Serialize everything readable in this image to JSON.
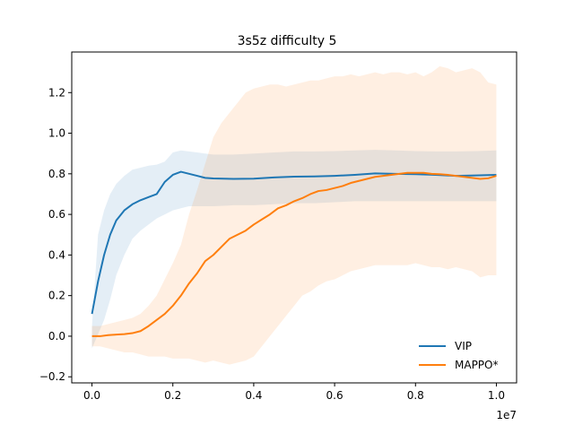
{
  "chart_data": {
    "type": "line",
    "title": "3s5z difficulty 5",
    "xlabel": "",
    "ylabel": "",
    "x_offset_label": "1e7",
    "xlim": [
      -0.05,
      1.05
    ],
    "ylim": [
      -0.23,
      1.4
    ],
    "grid": false,
    "legend_position": "lower-right",
    "x_ticks": [
      0.0,
      0.2,
      0.4,
      0.6,
      0.8,
      1.0
    ],
    "x_tick_labels": [
      "0.0",
      "0.2",
      "0.4",
      "0.6",
      "0.8",
      "1.0"
    ],
    "y_ticks": [
      -0.2,
      0.0,
      0.2,
      0.4,
      0.6,
      0.8,
      1.0,
      1.2
    ],
    "y_tick_labels": [
      "−0.2",
      "0.0",
      "0.2",
      "0.4",
      "0.6",
      "0.8",
      "1.0",
      "1.2"
    ],
    "series": [
      {
        "name": "VIP",
        "color": "#1f77b4",
        "x": [
          0.0,
          0.015,
          0.03,
          0.045,
          0.06,
          0.08,
          0.1,
          0.12,
          0.14,
          0.16,
          0.18,
          0.2,
          0.22,
          0.24,
          0.26,
          0.28,
          0.3,
          0.35,
          0.4,
          0.45,
          0.5,
          0.55,
          0.6,
          0.65,
          0.7,
          0.75,
          0.8,
          0.85,
          0.9,
          0.95,
          1.0
        ],
        "y": [
          0.11,
          0.27,
          0.4,
          0.5,
          0.57,
          0.62,
          0.65,
          0.67,
          0.685,
          0.7,
          0.76,
          0.795,
          0.81,
          0.8,
          0.79,
          0.78,
          0.777,
          0.775,
          0.776,
          0.782,
          0.786,
          0.787,
          0.79,
          0.795,
          0.802,
          0.8,
          0.798,
          0.795,
          0.79,
          0.792,
          0.795
        ],
        "y_low": [
          -0.06,
          0.01,
          0.08,
          0.18,
          0.3,
          0.4,
          0.48,
          0.52,
          0.55,
          0.58,
          0.6,
          0.62,
          0.63,
          0.64,
          0.64,
          0.64,
          0.64,
          0.645,
          0.645,
          0.65,
          0.655,
          0.655,
          0.66,
          0.665,
          0.665,
          0.665,
          0.665,
          0.665,
          0.665,
          0.665,
          0.665
        ],
        "y_high": [
          0.05,
          0.5,
          0.62,
          0.7,
          0.75,
          0.79,
          0.82,
          0.83,
          0.84,
          0.845,
          0.86,
          0.905,
          0.915,
          0.91,
          0.905,
          0.9,
          0.895,
          0.895,
          0.9,
          0.905,
          0.91,
          0.91,
          0.912,
          0.915,
          0.918,
          0.915,
          0.912,
          0.91,
          0.91,
          0.912,
          0.915
        ]
      },
      {
        "name": "MAPPO*",
        "color": "#ff7f0e",
        "x": [
          0.0,
          0.02,
          0.04,
          0.06,
          0.08,
          0.1,
          0.12,
          0.14,
          0.16,
          0.18,
          0.2,
          0.22,
          0.24,
          0.26,
          0.28,
          0.3,
          0.32,
          0.34,
          0.36,
          0.38,
          0.4,
          0.42,
          0.44,
          0.46,
          0.48,
          0.5,
          0.52,
          0.54,
          0.56,
          0.58,
          0.6,
          0.62,
          0.64,
          0.66,
          0.68,
          0.7,
          0.72,
          0.74,
          0.76,
          0.78,
          0.8,
          0.82,
          0.84,
          0.86,
          0.88,
          0.9,
          0.92,
          0.94,
          0.96,
          0.98,
          1.0
        ],
        "y": [
          0.0,
          0.0,
          0.005,
          0.008,
          0.01,
          0.015,
          0.025,
          0.05,
          0.08,
          0.11,
          0.15,
          0.2,
          0.26,
          0.31,
          0.37,
          0.4,
          0.44,
          0.48,
          0.5,
          0.52,
          0.55,
          0.575,
          0.6,
          0.63,
          0.645,
          0.665,
          0.68,
          0.7,
          0.715,
          0.72,
          0.73,
          0.74,
          0.755,
          0.765,
          0.775,
          0.785,
          0.79,
          0.795,
          0.8,
          0.805,
          0.805,
          0.805,
          0.8,
          0.798,
          0.795,
          0.79,
          0.785,
          0.78,
          0.775,
          0.778,
          0.79
        ],
        "y_low": [
          -0.05,
          -0.05,
          -0.06,
          -0.07,
          -0.08,
          -0.08,
          -0.09,
          -0.1,
          -0.1,
          -0.1,
          -0.11,
          -0.11,
          -0.11,
          -0.12,
          -0.13,
          -0.12,
          -0.13,
          -0.14,
          -0.13,
          -0.12,
          -0.1,
          -0.05,
          0.0,
          0.05,
          0.1,
          0.15,
          0.2,
          0.22,
          0.25,
          0.27,
          0.28,
          0.3,
          0.32,
          0.33,
          0.34,
          0.35,
          0.35,
          0.35,
          0.35,
          0.35,
          0.36,
          0.35,
          0.34,
          0.34,
          0.33,
          0.34,
          0.33,
          0.32,
          0.29,
          0.3,
          0.3
        ],
        "y_high": [
          0.05,
          0.05,
          0.06,
          0.07,
          0.08,
          0.09,
          0.11,
          0.15,
          0.2,
          0.28,
          0.36,
          0.45,
          0.6,
          0.72,
          0.85,
          0.98,
          1.05,
          1.1,
          1.15,
          1.2,
          1.22,
          1.23,
          1.24,
          1.24,
          1.23,
          1.24,
          1.25,
          1.26,
          1.26,
          1.27,
          1.28,
          1.28,
          1.29,
          1.28,
          1.29,
          1.3,
          1.29,
          1.3,
          1.3,
          1.29,
          1.3,
          1.28,
          1.3,
          1.33,
          1.32,
          1.3,
          1.31,
          1.32,
          1.3,
          1.25,
          1.24
        ]
      }
    ]
  }
}
